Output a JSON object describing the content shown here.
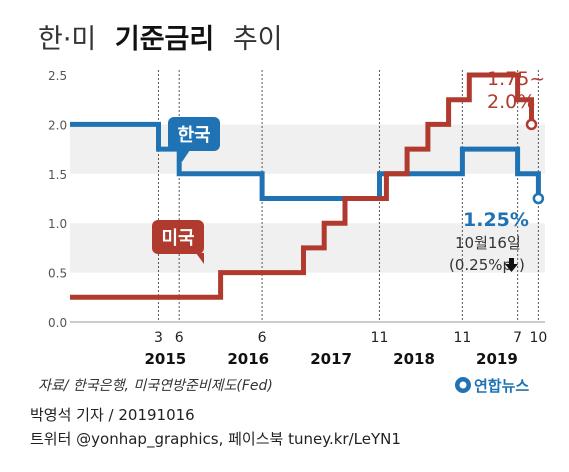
{
  "chart_data": {
    "type": "line",
    "title_prefix": "한·미",
    "title_bold": "기준금리",
    "title_suffix": "추이",
    "ylim": [
      0,
      2.5
    ],
    "y_ticks": [
      "0.0",
      "0.5",
      "1.0",
      "1.5",
      "2.0",
      "2.5"
    ],
    "x_ticks": [
      {
        "label": "3",
        "t": 2015.167
      },
      {
        "label": "6",
        "t": 2015.417
      },
      {
        "label": "6",
        "t": 2016.417
      },
      {
        "label": "11",
        "t": 2017.833
      },
      {
        "label": "11",
        "t": 2018.833
      },
      {
        "label": "7",
        "t": 2019.5
      },
      {
        "label": "10",
        "t": 2019.75
      }
    ],
    "year_labels": [
      {
        "label": "2015",
        "t": 2015.25
      },
      {
        "label": "2016",
        "t": 2016.25
      },
      {
        "label": "2017",
        "t": 2017.25
      },
      {
        "label": "2018",
        "t": 2018.25
      },
      {
        "label": "2019",
        "t": 2019.25
      }
    ],
    "x_range": [
      2014.1,
      2019.83
    ],
    "series": [
      {
        "name": "한국",
        "color": "#1f73b4",
        "points": [
          [
            2014.1,
            2.0
          ],
          [
            2015.167,
            2.0
          ],
          [
            2015.167,
            1.75
          ],
          [
            2015.417,
            1.75
          ],
          [
            2015.417,
            1.5
          ],
          [
            2016.417,
            1.5
          ],
          [
            2016.417,
            1.25
          ],
          [
            2017.833,
            1.25
          ],
          [
            2017.833,
            1.5
          ],
          [
            2018.833,
            1.5
          ],
          [
            2018.833,
            1.75
          ],
          [
            2019.5,
            1.75
          ],
          [
            2019.5,
            1.5
          ],
          [
            2019.75,
            1.5
          ],
          [
            2019.75,
            1.25
          ]
        ],
        "end_label": "1.25%",
        "end_value": 1.25
      },
      {
        "name": "미국",
        "color": "#b03a2e",
        "points": [
          [
            2014.1,
            0.25
          ],
          [
            2015.917,
            0.25
          ],
          [
            2015.917,
            0.5
          ],
          [
            2016.917,
            0.5
          ],
          [
            2016.917,
            0.75
          ],
          [
            2017.167,
            0.75
          ],
          [
            2017.167,
            1.0
          ],
          [
            2017.417,
            1.0
          ],
          [
            2017.417,
            1.25
          ],
          [
            2017.917,
            1.25
          ],
          [
            2017.917,
            1.5
          ],
          [
            2018.167,
            1.5
          ],
          [
            2018.167,
            1.75
          ],
          [
            2018.417,
            1.75
          ],
          [
            2018.417,
            2.0
          ],
          [
            2018.667,
            2.0
          ],
          [
            2018.667,
            2.25
          ],
          [
            2018.917,
            2.25
          ],
          [
            2018.917,
            2.5
          ],
          [
            2019.5,
            2.5
          ],
          [
            2019.5,
            2.25
          ],
          [
            2019.667,
            2.25
          ],
          [
            2019.667,
            2.0
          ]
        ],
        "end_label_1": "1.75~",
        "end_label_2": "2.0%",
        "end_value": 2.0
      }
    ],
    "annotation_date": "10월16일",
    "annotation_change": "(0.25%p",
    "source": "자료/ 한국은행, 미국연방준비제도(Fed)",
    "logo_text": "연합뉴스"
  },
  "credits": {
    "line1": "박영석 기자 / 20191016",
    "line2": "트위터 @yonhap_graphics, 페이스북 tuney.kr/LeYN1"
  }
}
